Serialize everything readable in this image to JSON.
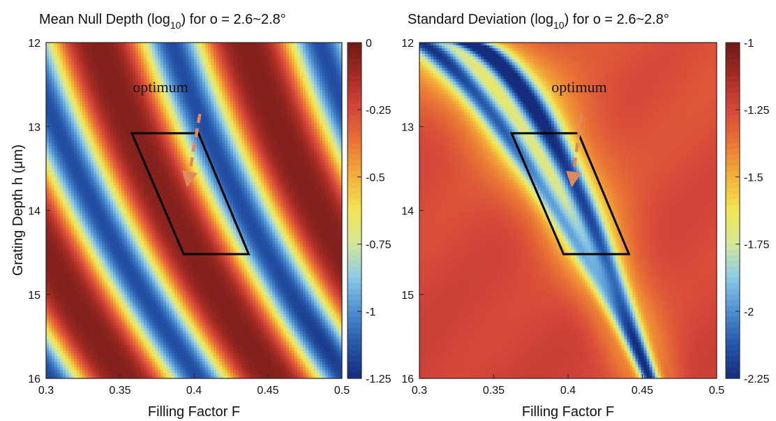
{
  "chart_data": [
    {
      "type": "heatmap",
      "title_parts": [
        "Mean Null Depth (log",
        "10",
        ") for ",
        "ο",
        " = 2.6~2.8°"
      ],
      "xlabel": "Filling Factor F",
      "ylabel": "Grating Depth h (μm)",
      "xlim": [
        0.3,
        0.5
      ],
      "ylim": [
        12,
        16
      ],
      "y_inverted": true,
      "x_ticks": [
        "0.3",
        "0.35",
        "0.4",
        "0.45",
        "0.5"
      ],
      "x_tick_values": [
        0.3,
        0.35,
        0.4,
        0.45,
        0.5
      ],
      "y_ticks": [
        "12",
        "13",
        "14",
        "15",
        "16"
      ],
      "y_tick_values": [
        12,
        13,
        14,
        15,
        16
      ],
      "colorbar": {
        "min": -1.25,
        "max": 0,
        "ticks": [
          "0",
          "-0.25",
          "-0.5",
          "-0.75",
          "-1",
          "-1.25"
        ],
        "tick_values": [
          0,
          -0.25,
          -0.5,
          -0.75,
          -1,
          -1.25
        ]
      },
      "annotation": {
        "label": "optimum",
        "arrow_from": [
          0.404,
          12.85
        ],
        "arrow_to": [
          0.396,
          13.65
        ],
        "arrow_color": "#e08a5c"
      },
      "region": [
        [
          0.358,
          13.08
        ],
        [
          0.403,
          13.08
        ],
        [
          0.437,
          14.52
        ],
        [
          0.393,
          14.52
        ]
      ],
      "valley": {
        "f0": 0.385,
        "slope": 0.0195,
        "curve": 0.0025,
        "period": 0.1
      }
    },
    {
      "type": "heatmap",
      "title_parts": [
        "Standard Deviation (log",
        "10",
        ") for ",
        "ο",
        " = 2.6~2.8°"
      ],
      "xlabel": "Filling Factor F",
      "ylabel": "",
      "xlim": [
        0.3,
        0.5
      ],
      "ylim": [
        12,
        16
      ],
      "y_inverted": true,
      "x_ticks": [
        "0.3",
        "0.35",
        "0.4",
        "0.45",
        "0.5"
      ],
      "x_tick_values": [
        0.3,
        0.35,
        0.4,
        0.45,
        0.5
      ],
      "y_ticks": [
        "12",
        "13",
        "14",
        "15",
        "16"
      ],
      "y_tick_values": [
        12,
        13,
        14,
        15,
        16
      ],
      "colorbar": {
        "min": -2.25,
        "max": -1,
        "ticks": [
          "-1",
          "-1.25",
          "-1.5",
          "-1.75",
          "-2",
          "-2.25"
        ],
        "tick_values": [
          -1,
          -1.25,
          -1.5,
          -1.75,
          -2,
          -2.25
        ]
      },
      "annotation": {
        "label": "optimum",
        "arrow_from": [
          0.409,
          12.85
        ],
        "arrow_to": [
          0.403,
          13.65
        ],
        "arrow_color": "#e08a5c"
      },
      "region": [
        [
          0.362,
          13.08
        ],
        [
          0.407,
          13.08
        ],
        [
          0.441,
          14.52
        ],
        [
          0.397,
          14.52
        ]
      ],
      "ridges": [
        {
          "f0": 0.33,
          "f_end": 0.455,
          "power": 0.6
        },
        {
          "f0": 0.3,
          "f_end": 0.455,
          "power": 0.75
        }
      ]
    }
  ],
  "colormap": [
    "#162c7c",
    "#2555a8",
    "#4d8fd0",
    "#8cc9e6",
    "#d4e79a",
    "#f3e552",
    "#f3b13a",
    "#ea7635",
    "#d6473a",
    "#a52c24",
    "#6e1a18"
  ]
}
